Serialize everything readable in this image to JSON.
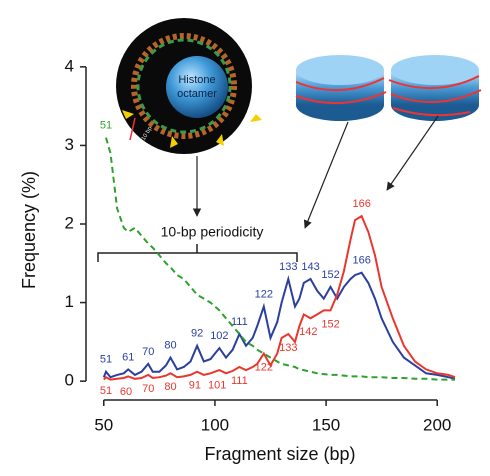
{
  "chart_data": {
    "type": "line",
    "xlabel": "Fragment size (bp)",
    "ylabel": "Frequency (%)",
    "xlim": [
      42,
      208
    ],
    "ylim": [
      -0.24,
      4.1
    ],
    "xticks": [
      50,
      100,
      150,
      200
    ],
    "yticks": [
      0,
      1,
      2,
      3,
      4
    ],
    "annotations": {
      "periodicity": "10-bp periodicity",
      "octamer_line1": "Histone",
      "octamer_line2": "octamer",
      "scale": "10 bp"
    },
    "x": [
      50,
      51,
      53,
      56,
      59,
      61,
      64,
      67,
      70,
      72,
      75,
      78,
      80,
      83,
      86,
      89,
      92,
      95,
      98,
      100,
      102,
      105,
      108,
      111,
      114,
      117,
      119,
      122,
      125,
      128,
      130,
      133,
      136,
      138,
      140,
      143,
      146,
      149,
      152,
      155,
      158,
      161,
      163,
      166,
      169,
      172,
      175,
      180,
      185,
      190,
      195,
      200,
      205,
      208
    ],
    "series": [
      {
        "color": "#2b3f9e",
        "dashed": false,
        "values": [
          0.05,
          0.12,
          0.05,
          0.08,
          0.1,
          0.15,
          0.08,
          0.12,
          0.22,
          0.12,
          0.12,
          0.2,
          0.3,
          0.15,
          0.18,
          0.25,
          0.45,
          0.25,
          0.28,
          0.35,
          0.42,
          0.3,
          0.4,
          0.6,
          0.45,
          0.55,
          0.7,
          0.95,
          0.55,
          0.75,
          1.0,
          1.3,
          0.95,
          1.05,
          1.25,
          1.3,
          1.15,
          1.05,
          1.2,
          1.05,
          1.2,
          1.3,
          1.35,
          1.38,
          1.25,
          1.05,
          0.8,
          0.5,
          0.3,
          0.2,
          0.1,
          0.08,
          0.05,
          0.03
        ],
        "peak_labels": [
          "51",
          "61",
          "70",
          "80",
          "92",
          "102",
          "111",
          "122",
          "133",
          "143",
          "152",
          "166"
        ]
      },
      {
        "color": "#e8382e",
        "dashed": false,
        "values": [
          0.02,
          0.05,
          0.02,
          0.03,
          0.04,
          0.06,
          0.03,
          0.04,
          0.08,
          0.04,
          0.05,
          0.07,
          0.1,
          0.05,
          0.06,
          0.08,
          0.12,
          0.08,
          0.1,
          0.12,
          0.14,
          0.1,
          0.13,
          0.18,
          0.14,
          0.18,
          0.22,
          0.35,
          0.2,
          0.35,
          0.55,
          0.6,
          0.5,
          0.7,
          0.85,
          0.8,
          0.85,
          0.9,
          0.9,
          1.1,
          1.4,
          1.8,
          2.05,
          2.1,
          1.9,
          1.6,
          1.2,
          0.8,
          0.45,
          0.25,
          0.15,
          0.1,
          0.08,
          0.05
        ],
        "peak_labels": [
          "51",
          "60",
          "70",
          "80",
          "91",
          "101",
          "111",
          "122",
          "133",
          "142",
          "152",
          "166"
        ]
      },
      {
        "color": "#2ea12e",
        "dashed": true,
        "values": [
          null,
          3.1,
          2.9,
          2.2,
          1.95,
          1.9,
          1.95,
          1.85,
          1.75,
          1.7,
          1.6,
          1.5,
          1.45,
          1.35,
          1.3,
          1.2,
          1.1,
          1.05,
          1.0,
          0.95,
          0.9,
          0.8,
          0.7,
          0.6,
          0.5,
          0.45,
          0.4,
          0.35,
          0.3,
          0.25,
          0.22,
          0.2,
          0.18,
          0.15,
          0.14,
          0.12,
          0.1,
          0.09,
          0.08,
          0.08,
          0.07,
          0.06,
          0.06,
          0.06,
          0.05,
          0.05,
          0.05,
          0.04,
          0.04,
          0.03,
          0.03,
          0.02,
          0.02,
          0.02
        ],
        "peak_labels": [
          "51"
        ]
      }
    ]
  }
}
